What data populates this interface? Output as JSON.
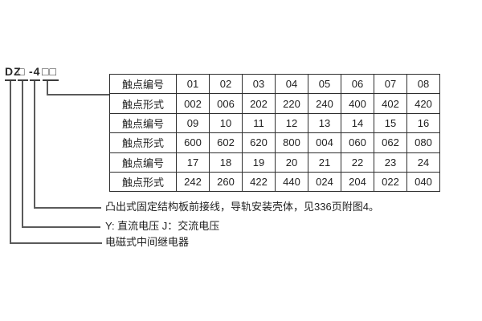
{
  "model_code": {
    "prefix": "DZ",
    "box1": "□",
    "suffix": "-4",
    "box2": "□□"
  },
  "table": {
    "row_label_number": "触点编号",
    "row_label_form": "触点形式",
    "rows": [
      {
        "label": "触点编号",
        "values": [
          "01",
          "02",
          "03",
          "04",
          "05",
          "06",
          "07",
          "08"
        ]
      },
      {
        "label": "触点形式",
        "values": [
          "002",
          "006",
          "202",
          "220",
          "240",
          "400",
          "402",
          "420"
        ]
      },
      {
        "label": "触点编号",
        "values": [
          "09",
          "10",
          "11",
          "12",
          "13",
          "14",
          "15",
          "16"
        ]
      },
      {
        "label": "触点形式",
        "values": [
          "600",
          "602",
          "620",
          "800",
          "004",
          "060",
          "062",
          "080"
        ]
      },
      {
        "label": "触点编号",
        "values": [
          "17",
          "18",
          "19",
          "20",
          "21",
          "22",
          "23",
          "24"
        ]
      },
      {
        "label": "触点形式",
        "values": [
          "242",
          "260",
          "422",
          "440",
          "024",
          "204",
          "022",
          "040"
        ]
      }
    ]
  },
  "annotations": [
    {
      "text": "凸出式固定结构板前接线，导轨安装壳体，见336页附图4。"
    },
    {
      "text": "Y: 直流电压  J：交流电压"
    },
    {
      "text": "电磁式中间继电器"
    }
  ]
}
